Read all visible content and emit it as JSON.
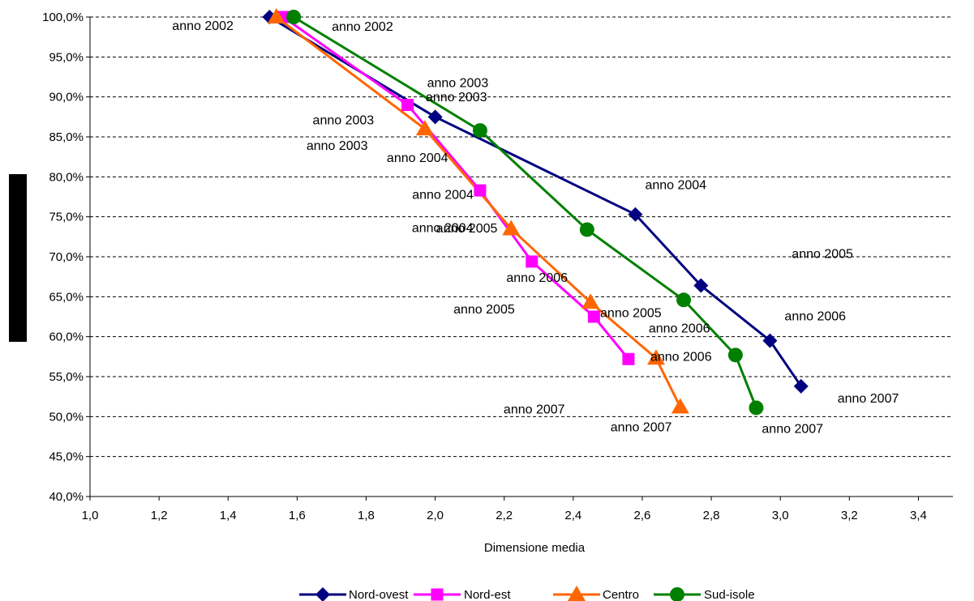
{
  "chart_data": {
    "type": "line",
    "title": "",
    "xlabel": "Dimensione media",
    "ylabel": "",
    "xlim": [
      1.0,
      3.5
    ],
    "ylim": [
      40,
      100
    ],
    "xticks": [
      "1,0",
      "1,2",
      "1,4",
      "1,6",
      "1,8",
      "2,0",
      "2,2",
      "2,4",
      "2,6",
      "2,8",
      "3,0",
      "3,2",
      "3,4"
    ],
    "yticks": [
      "40,0%",
      "45,0%",
      "50,0%",
      "55,0%",
      "60,0%",
      "65,0%",
      "70,0%",
      "75,0%",
      "80,0%",
      "85,0%",
      "90,0%",
      "95,0%",
      "100,0%"
    ],
    "grid": "horizontal dashed",
    "legend": "bottom",
    "series": [
      {
        "name": "Nord-ovest",
        "color": "#000080",
        "marker": "diamond",
        "points": [
          {
            "x": 1.52,
            "y": 100.0,
            "label": "anno 2002"
          },
          {
            "x": 2.0,
            "y": 87.5,
            "label": "anno 2003"
          },
          {
            "x": 2.58,
            "y": 75.3,
            "label": "anno 2004"
          },
          {
            "x": 2.77,
            "y": 66.4,
            "label": "anno 2005"
          },
          {
            "x": 2.97,
            "y": 59.5,
            "label": "anno 2006"
          },
          {
            "x": 3.06,
            "y": 53.8,
            "label": "anno 2007"
          }
        ]
      },
      {
        "name": "Nord-est",
        "color": "#FF00FF",
        "marker": "square",
        "points": [
          {
            "x": 1.56,
            "y": 100.0,
            "label": ""
          },
          {
            "x": 1.92,
            "y": 89.0,
            "label": "anno 2003"
          },
          {
            "x": 2.13,
            "y": 78.3,
            "label": "anno 2004"
          },
          {
            "x": 2.28,
            "y": 69.4,
            "label": "anno 2005"
          },
          {
            "x": 2.46,
            "y": 62.5,
            "label": "anno 2006"
          },
          {
            "x": 2.56,
            "y": 57.2,
            "label": "anno 2007"
          }
        ]
      },
      {
        "name": "Centro",
        "color": "#FF6600",
        "marker": "triangle",
        "points": [
          {
            "x": 1.54,
            "y": 100.0,
            "label": ""
          },
          {
            "x": 1.97,
            "y": 86.0,
            "label": "anno 2003"
          },
          {
            "x": 2.22,
            "y": 73.5,
            "label": "anno 2004"
          },
          {
            "x": 2.45,
            "y": 64.3,
            "label": "anno 2005"
          },
          {
            "x": 2.64,
            "y": 57.3,
            "label": "anno 2006"
          },
          {
            "x": 2.71,
            "y": 51.2,
            "label": "anno 2007"
          }
        ]
      },
      {
        "name": "Sud-isole",
        "color": "#008000",
        "marker": "circle",
        "points": [
          {
            "x": 1.59,
            "y": 100.0,
            "label": "anno 2002"
          },
          {
            "x": 2.13,
            "y": 85.8,
            "label": "anno 2003"
          },
          {
            "x": 2.44,
            "y": 73.4,
            "label": "anno 2004"
          },
          {
            "x": 2.72,
            "y": 64.6,
            "label": "anno 2005"
          },
          {
            "x": 2.87,
            "y": 57.7,
            "label": "anno 2006"
          },
          {
            "x": 2.93,
            "y": 51.1,
            "label": "anno 2007"
          }
        ]
      }
    ]
  }
}
